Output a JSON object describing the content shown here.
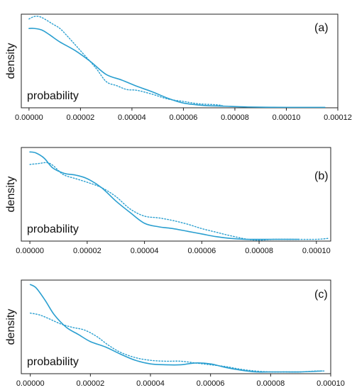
{
  "chart_data": [
    {
      "type": "line",
      "panel_label": "(a)",
      "ylabel": "density",
      "annotation": "probability",
      "xlim": [
        -3e-06,
        0.00012
      ],
      "ylim": [
        0,
        1.18
      ],
      "xticks": [
        0,
        2e-05,
        4e-05,
        6e-05,
        8e-05,
        0.0001,
        0.00012
      ],
      "xtick_labels": [
        "0.00000",
        "0.00002",
        "0.00004",
        "0.00006",
        "0.00008",
        "0.00010",
        "0.00012"
      ],
      "grid": false,
      "series": [
        {
          "style": "solid",
          "color": "#2a9fd0",
          "x": [
            0,
            2e-06,
            5e-06,
            8e-06,
            1.2e-05,
            1.8e-05,
            2.4e-05,
            3e-05,
            3.6e-05,
            4.2e-05,
            4.8e-05,
            5.4e-05,
            6e-05,
            6.8e-05,
            7.6e-05,
            8.5e-05,
            0.0001,
            0.000115
          ],
          "y": [
            1.0,
            1.0,
            0.98,
            0.92,
            0.83,
            0.72,
            0.58,
            0.42,
            0.35,
            0.27,
            0.2,
            0.12,
            0.06,
            0.03,
            0.02,
            0.01,
            0.005,
            0.005
          ]
        },
        {
          "style": "dotted",
          "color": "#2a9fd0",
          "x": [
            0,
            2e-06,
            4e-06,
            6e-06,
            9e-06,
            1.2e-05,
            1.5e-05,
            2e-05,
            2.6e-05,
            3e-05,
            3.4e-05,
            3.8e-05,
            4.2e-05,
            4.8e-05,
            5.4e-05,
            6e-05,
            6.6e-05,
            7.2e-05,
            7.5e-05
          ],
          "y": [
            1.12,
            1.15,
            1.15,
            1.12,
            1.06,
            1.0,
            0.9,
            0.72,
            0.5,
            0.33,
            0.28,
            0.23,
            0.22,
            0.17,
            0.11,
            0.08,
            0.05,
            0.04,
            0.03
          ]
        }
      ]
    },
    {
      "type": "line",
      "panel_label": "(b)",
      "ylabel": "density",
      "annotation": "probability",
      "xlim": [
        -3e-06,
        0.000105
      ],
      "ylim": [
        0,
        1.05
      ],
      "xticks": [
        0,
        2e-05,
        4e-05,
        6e-05,
        8e-05,
        0.0001
      ],
      "xtick_labels": [
        "0.00000",
        "0.00002",
        "0.00004",
        "0.00006",
        "0.00008",
        "0.00010"
      ],
      "grid": false,
      "series": [
        {
          "style": "solid",
          "color": "#2a9fd0",
          "x": [
            0,
            2e-06,
            5e-06,
            8e-06,
            1.2e-05,
            1.6e-05,
            2e-05,
            2.5e-05,
            3e-05,
            3.5e-05,
            4e-05,
            4.5e-05,
            5e-05,
            5.5e-05,
            6e-05,
            6.5e-05,
            7e-05,
            7.5e-05,
            8e-05,
            8.5e-05,
            9e-05,
            9.4e-05
          ],
          "y": [
            1.0,
            0.99,
            0.93,
            0.82,
            0.76,
            0.74,
            0.7,
            0.6,
            0.45,
            0.32,
            0.2,
            0.16,
            0.14,
            0.11,
            0.08,
            0.05,
            0.03,
            0.02,
            0.02,
            0.02,
            0.02,
            0.02
          ]
        },
        {
          "style": "dotted",
          "color": "#2a9fd0",
          "x": [
            0,
            3e-06,
            6e-06,
            8e-06,
            1e-05,
            1.2e-05,
            1.6e-05,
            2e-05,
            2.5e-05,
            3e-05,
            3.5e-05,
            4e-05,
            4.5e-05,
            5e-05,
            5.5e-05,
            6e-05,
            6.5e-05,
            7e-05,
            7.6e-05,
            8e-05,
            8.5e-05,
            9e-05,
            0.0001,
            0.000104
          ],
          "y": [
            0.86,
            0.87,
            0.88,
            0.85,
            0.79,
            0.74,
            0.7,
            0.66,
            0.6,
            0.5,
            0.36,
            0.28,
            0.26,
            0.23,
            0.19,
            0.14,
            0.1,
            0.06,
            0.02,
            0.01,
            0.02,
            0.02,
            0.02,
            0.03
          ]
        }
      ]
    },
    {
      "type": "line",
      "panel_label": "(c)",
      "ylabel": "density",
      "annotation": "probability",
      "xlim": [
        -3e-06,
        0.0001
      ],
      "ylim": [
        0,
        1.05
      ],
      "xticks": [
        0,
        2e-05,
        4e-05,
        6e-05,
        8e-05,
        0.0001
      ],
      "xtick_labels": [
        "0.00000",
        "0.00002",
        "0.00004",
        "0.00006",
        "0.00008",
        "0.00010"
      ],
      "grid": false,
      "series": [
        {
          "style": "solid",
          "color": "#2a9fd0",
          "x": [
            0,
            2e-06,
            5e-06,
            8e-06,
            1.2e-05,
            1.6e-05,
            2e-05,
            2.5e-05,
            3e-05,
            3.5e-05,
            4e-05,
            4.5e-05,
            5e-05,
            5.5e-05,
            6e-05,
            6.5e-05,
            7e-05,
            7.5e-05,
            8e-05,
            8.5e-05,
            9e-05,
            9.7e-05
          ],
          "y": [
            1.0,
            0.96,
            0.82,
            0.66,
            0.52,
            0.44,
            0.36,
            0.3,
            0.22,
            0.15,
            0.11,
            0.1,
            0.1,
            0.12,
            0.11,
            0.07,
            0.04,
            0.02,
            0.02,
            0.02,
            0.02,
            0.03
          ]
        },
        {
          "style": "dotted",
          "color": "#2a9fd0",
          "x": [
            0,
            3e-06,
            6e-06,
            1e-05,
            1.4e-05,
            1.8e-05,
            2.2e-05,
            2.6e-05,
            3e-05,
            3.5e-05,
            4e-05,
            4.5e-05,
            5e-05,
            5.5e-05,
            6e-05,
            6.5e-05,
            7e-05,
            7.5e-05,
            8e-05,
            8.5e-05,
            9e-05,
            9.5e-05,
            9.8e-05
          ],
          "y": [
            0.68,
            0.66,
            0.62,
            0.56,
            0.52,
            0.49,
            0.42,
            0.32,
            0.24,
            0.18,
            0.15,
            0.14,
            0.14,
            0.12,
            0.1,
            0.08,
            0.05,
            0.03,
            0.02,
            0.02,
            0.02,
            0.03,
            0.03
          ]
        }
      ]
    }
  ]
}
